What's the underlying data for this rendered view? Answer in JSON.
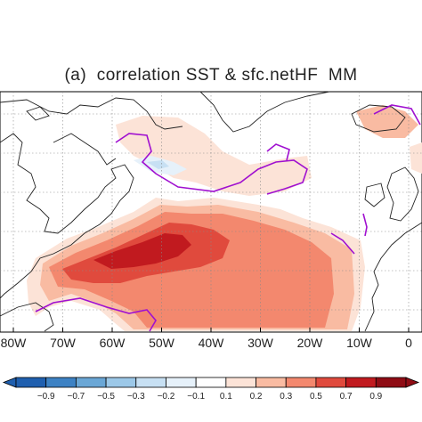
{
  "chart_data": {
    "type": "heatmap",
    "panel_label": "(a)",
    "title": "(a)  correlation SST & sfc.netHF  MM",
    "x_ticks": [
      "80W",
      "70W",
      "60W",
      "50W",
      "40W",
      "30W",
      "20W",
      "10W",
      "0"
    ],
    "x_range": [
      "80W",
      "0"
    ],
    "grid": true,
    "colorbar": {
      "levels": [
        "-0.9",
        "-0.7",
        "-0.5",
        "-0.3",
        "-0.2",
        "-0.1",
        "0.1",
        "0.2",
        "0.3",
        "0.5",
        "0.7",
        "0.9"
      ],
      "colors": [
        "#1f5faf",
        "#3d82c4",
        "#6aa7d6",
        "#9cc8e8",
        "#c7e0f3",
        "#e6f1fa",
        "#ffffff",
        "#fce3d7",
        "#f9bba2",
        "#f3886e",
        "#e04a3d",
        "#c11a1f",
        "#8f0c14"
      ]
    },
    "contour_color": "#a010d0",
    "coastline_color": "#222222"
  }
}
